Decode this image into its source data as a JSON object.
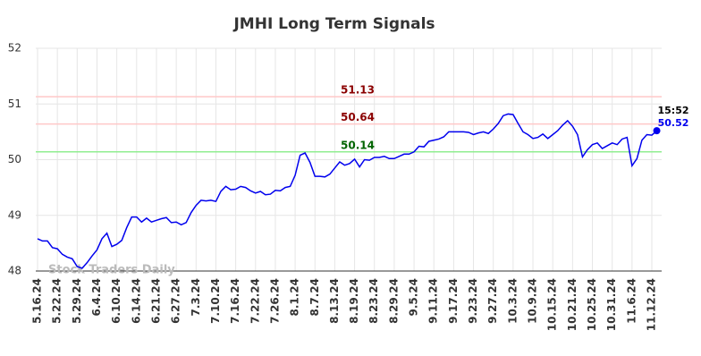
{
  "chart_data": {
    "type": "line",
    "title": "JMHI Long Term Signals",
    "categories": [
      "5.16.24",
      null,
      null,
      null,
      "5.22.24",
      null,
      null,
      null,
      "5.29.24",
      null,
      null,
      null,
      "6.4.24",
      null,
      null,
      null,
      "6.10.24",
      null,
      null,
      null,
      "6.14.24",
      null,
      null,
      null,
      "6.21.24",
      null,
      null,
      null,
      "6.27.24",
      null,
      null,
      null,
      "7.3.24",
      null,
      null,
      null,
      "7.10.24",
      null,
      null,
      null,
      "7.16.24",
      null,
      null,
      null,
      "7.22.24",
      null,
      null,
      null,
      "7.26.24",
      null,
      null,
      null,
      "8.1.24",
      null,
      null,
      null,
      "8.7.24",
      null,
      null,
      null,
      "8.13.24",
      null,
      null,
      null,
      "8.19.24",
      null,
      null,
      null,
      "8.23.24",
      null,
      null,
      null,
      "8.29.24",
      null,
      null,
      null,
      "9.5.24",
      null,
      null,
      null,
      "9.11.24",
      null,
      null,
      null,
      "9.17.24",
      null,
      null,
      null,
      "9.23.24",
      null,
      null,
      null,
      "9.27.24",
      null,
      null,
      null,
      "10.3.24",
      null,
      null,
      null,
      "10.9.24",
      null,
      null,
      null,
      "10.15.24",
      null,
      null,
      null,
      "10.21.24",
      null,
      null,
      null,
      "10.25.24",
      null,
      null,
      null,
      "10.31.24",
      null,
      null,
      null,
      "11.6.24",
      null,
      null,
      null,
      "11.12.24",
      null
    ],
    "values": [
      48.58,
      48.54,
      48.54,
      48.42,
      48.4,
      48.3,
      48.25,
      48.22,
      48.08,
      48.05,
      48.15,
      48.27,
      48.38,
      48.58,
      48.68,
      48.44,
      48.48,
      48.55,
      48.78,
      48.97,
      48.97,
      48.88,
      48.95,
      48.88,
      48.91,
      48.94,
      48.96,
      48.87,
      48.88,
      48.83,
      48.87,
      49.05,
      49.18,
      49.27,
      49.26,
      49.27,
      49.25,
      49.43,
      49.52,
      49.46,
      49.47,
      49.52,
      49.5,
      49.44,
      49.4,
      49.43,
      49.37,
      49.38,
      49.45,
      49.44,
      49.5,
      49.52,
      49.72,
      50.08,
      50.12,
      49.95,
      49.7,
      49.7,
      49.69,
      49.74,
      49.85,
      49.96,
      49.9,
      49.93,
      50.01,
      49.87,
      50.0,
      49.99,
      50.04,
      50.04,
      50.06,
      50.02,
      50.02,
      50.06,
      50.1,
      50.1,
      50.14,
      50.24,
      50.23,
      50.33,
      50.35,
      50.37,
      50.41,
      50.5,
      50.5,
      50.5,
      50.5,
      50.49,
      50.45,
      50.48,
      50.5,
      50.47,
      50.55,
      50.65,
      50.79,
      50.82,
      50.81,
      50.65,
      50.5,
      50.45,
      50.38,
      50.4,
      50.46,
      50.38,
      50.45,
      50.52,
      50.62,
      50.7,
      50.6,
      50.45,
      50.05,
      50.18,
      50.27,
      50.3,
      50.2,
      50.25,
      50.3,
      50.27,
      50.37,
      50.4,
      49.89,
      50.02,
      50.35,
      50.45,
      50.44,
      50.52
    ],
    "color": "#0000ee",
    "ylim": [
      48,
      52
    ],
    "yticks": [
      48,
      49,
      50,
      51,
      52
    ],
    "grid": true,
    "reference_lines": [
      {
        "value": 51.13,
        "color": "#ffc8c8",
        "label_color": "#8b0000"
      },
      {
        "value": 50.64,
        "color": "#ffc8c8",
        "label_color": "#8b0000"
      },
      {
        "value": 50.14,
        "color": "#90ee90",
        "label_color": "#006400"
      }
    ],
    "last_time": "15:52",
    "watermark": "Stock Traders Daily"
  }
}
